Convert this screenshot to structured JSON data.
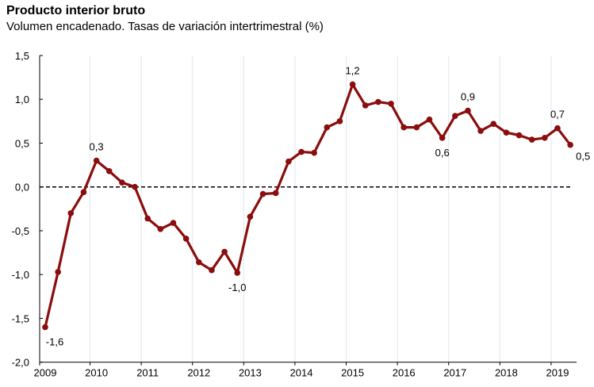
{
  "chart_data": {
    "type": "line",
    "title": "Producto interior bruto",
    "subtitle": "Volumen encadenado. Tasas de variación intertrimestral (%)",
    "xlabel": "",
    "ylabel": "",
    "ylim": [
      -2.0,
      1.5
    ],
    "yticks": [
      "-2,0",
      "-1,5",
      "-1,0",
      "-0,5",
      "0,0",
      "0,5",
      "1,0",
      "1,5"
    ],
    "ytick_values": [
      -2.0,
      -1.5,
      -1.0,
      -0.5,
      0.0,
      0.5,
      1.0,
      1.5
    ],
    "xticks": [
      "2009",
      "2010",
      "2011",
      "2012",
      "2013",
      "2014",
      "2015",
      "2016",
      "2017",
      "2018",
      "2019"
    ],
    "x_frequency": "quarterly",
    "x_start": "2009 Q1",
    "x_end": "2019 Q2",
    "grid": "vertical at year boundaries",
    "reference_line": {
      "y": 0,
      "style": "dashed"
    },
    "line_color": "#8b0d0d",
    "series": [
      {
        "values": [
          -1.6,
          -0.97,
          -0.3,
          -0.06,
          0.3,
          0.18,
          0.05,
          0.0,
          -0.36,
          -0.48,
          -0.41,
          -0.59,
          -0.86,
          -0.95,
          -0.74,
          -0.98,
          -0.34,
          -0.08,
          -0.07,
          0.29,
          0.4,
          0.39,
          0.68,
          0.75,
          1.17,
          0.93,
          0.97,
          0.95,
          0.68,
          0.68,
          0.77,
          0.56,
          0.81,
          0.87,
          0.64,
          0.72,
          0.62,
          0.59,
          0.54,
          0.56,
          0.67,
          0.48
        ]
      }
    ],
    "data_labels": [
      {
        "index": 0,
        "text": "-1,6",
        "position": "below"
      },
      {
        "index": 4,
        "text": "0,3",
        "position": "above"
      },
      {
        "index": 15,
        "text": "-1,0",
        "position": "below"
      },
      {
        "index": 24,
        "text": "1,2",
        "position": "above"
      },
      {
        "index": 31,
        "text": "0,6",
        "position": "below"
      },
      {
        "index": 33,
        "text": "0,9",
        "position": "above"
      },
      {
        "index": 40,
        "text": "0,7",
        "position": "above"
      },
      {
        "index": 41,
        "text": "0,5",
        "position": "below-right"
      }
    ]
  }
}
